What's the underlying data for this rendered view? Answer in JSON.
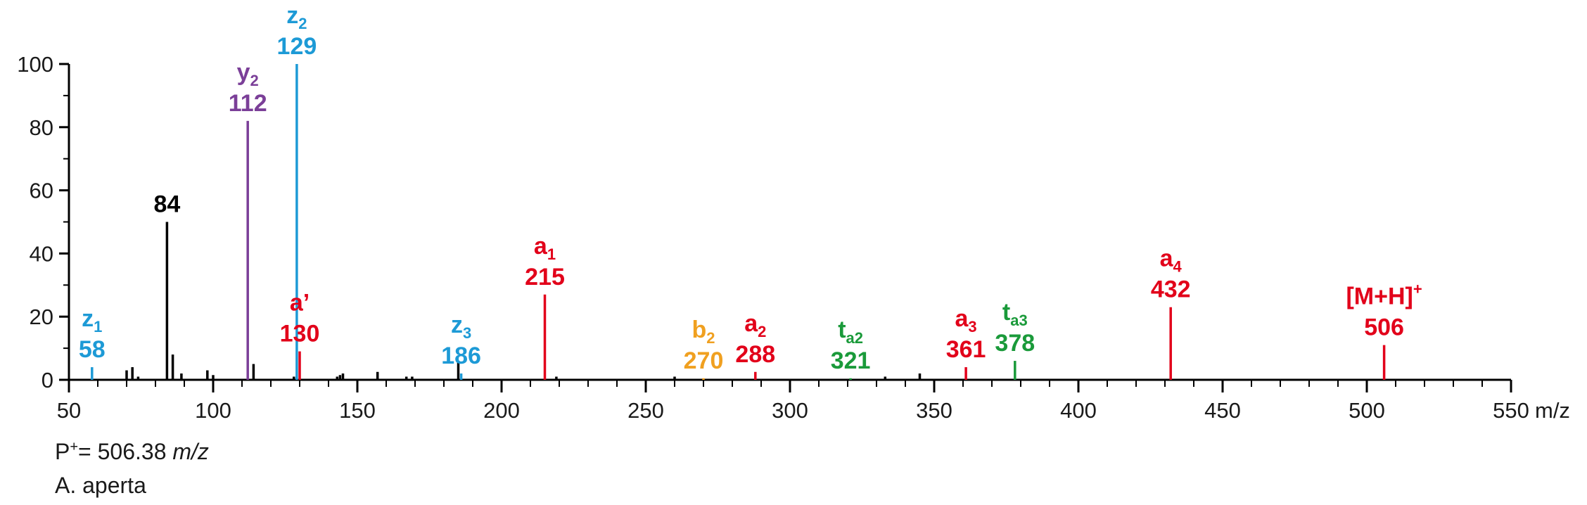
{
  "chart_data": {
    "type": "bar",
    "title": "",
    "xlabel": "m/z",
    "ylabel": "",
    "xlim": [
      50,
      550
    ],
    "ylim": [
      0,
      100
    ],
    "x_ticks": [
      50,
      100,
      150,
      200,
      250,
      300,
      350,
      400,
      450,
      500,
      550
    ],
    "y_ticks": [
      0,
      20,
      40,
      60,
      80,
      100
    ],
    "grid": false,
    "colors": {
      "axis": "#000000",
      "unlabeled": "#000000",
      "red": "#e2001a",
      "blue": "#1d9ad6",
      "purple": "#7b3f98",
      "orange": "#f0a020",
      "green": "#1a9a3a"
    },
    "labeled_peaks": [
      {
        "mz": 58,
        "intensity": 4,
        "ion": "z",
        "sub": "1",
        "sup": "",
        "value": "58",
        "color": "blue"
      },
      {
        "mz": 84,
        "intensity": 50,
        "ion": "",
        "sub": "",
        "sup": "",
        "value": "84",
        "color": "unlabeled",
        "bold_black": true
      },
      {
        "mz": 112,
        "intensity": 82,
        "ion": "y",
        "sub": "2",
        "sup": "",
        "value": "112",
        "color": "purple"
      },
      {
        "mz": 129,
        "intensity": 100,
        "ion": "z",
        "sub": "2",
        "sup": "",
        "value": "129",
        "color": "blue"
      },
      {
        "mz": 130,
        "intensity": 9,
        "ion": "a’",
        "sub": "",
        "sup": "",
        "value": "130",
        "color": "red"
      },
      {
        "mz": 186,
        "intensity": 2,
        "ion": "z",
        "sub": "3",
        "sup": "",
        "value": "186",
        "color": "blue"
      },
      {
        "mz": 215,
        "intensity": 27,
        "ion": "a",
        "sub": "1",
        "sup": "",
        "value": "215",
        "color": "red"
      },
      {
        "mz": 270,
        "intensity": 0.5,
        "ion": "b",
        "sub": "2",
        "sup": "",
        "value": "270",
        "color": "orange"
      },
      {
        "mz": 288,
        "intensity": 2.5,
        "ion": "a",
        "sub": "2",
        "sup": "",
        "value": "288",
        "color": "red"
      },
      {
        "mz": 321,
        "intensity": 0.5,
        "ion": "t",
        "sub": "a2",
        "sup": "",
        "value": "321",
        "color": "green"
      },
      {
        "mz": 361,
        "intensity": 4,
        "ion": "a",
        "sub": "3",
        "sup": "",
        "value": "361",
        "color": "red"
      },
      {
        "mz": 378,
        "intensity": 6,
        "ion": "t",
        "sub": "a3",
        "sup": "",
        "value": "378",
        "color": "green"
      },
      {
        "mz": 432,
        "intensity": 23,
        "ion": "a",
        "sub": "4",
        "sup": "",
        "value": "432",
        "color": "red"
      },
      {
        "mz": 506,
        "intensity": 11,
        "ion": "[M+H]",
        "sub": "",
        "sup": "+",
        "value": "506",
        "color": "red"
      }
    ],
    "minor_peaks": [
      {
        "mz": 70,
        "intensity": 3
      },
      {
        "mz": 72,
        "intensity": 4
      },
      {
        "mz": 74,
        "intensity": 1
      },
      {
        "mz": 86,
        "intensity": 8
      },
      {
        "mz": 89,
        "intensity": 2
      },
      {
        "mz": 98,
        "intensity": 3
      },
      {
        "mz": 100,
        "intensity": 1.5
      },
      {
        "mz": 114,
        "intensity": 5
      },
      {
        "mz": 128,
        "intensity": 1
      },
      {
        "mz": 143,
        "intensity": 1
      },
      {
        "mz": 144,
        "intensity": 1.5
      },
      {
        "mz": 145,
        "intensity": 2
      },
      {
        "mz": 157,
        "intensity": 2.5
      },
      {
        "mz": 167,
        "intensity": 1
      },
      {
        "mz": 169,
        "intensity": 1
      },
      {
        "mz": 185,
        "intensity": 6
      },
      {
        "mz": 219,
        "intensity": 1
      },
      {
        "mz": 260,
        "intensity": 1
      },
      {
        "mz": 333,
        "intensity": 1
      },
      {
        "mz": 345,
        "intensity": 2
      }
    ]
  },
  "footer": {
    "precursor_prefix": "P",
    "precursor_sup": "+",
    "precursor_value": "= 506.38 ",
    "precursor_unit": "m/z",
    "species": "A. aperta"
  }
}
